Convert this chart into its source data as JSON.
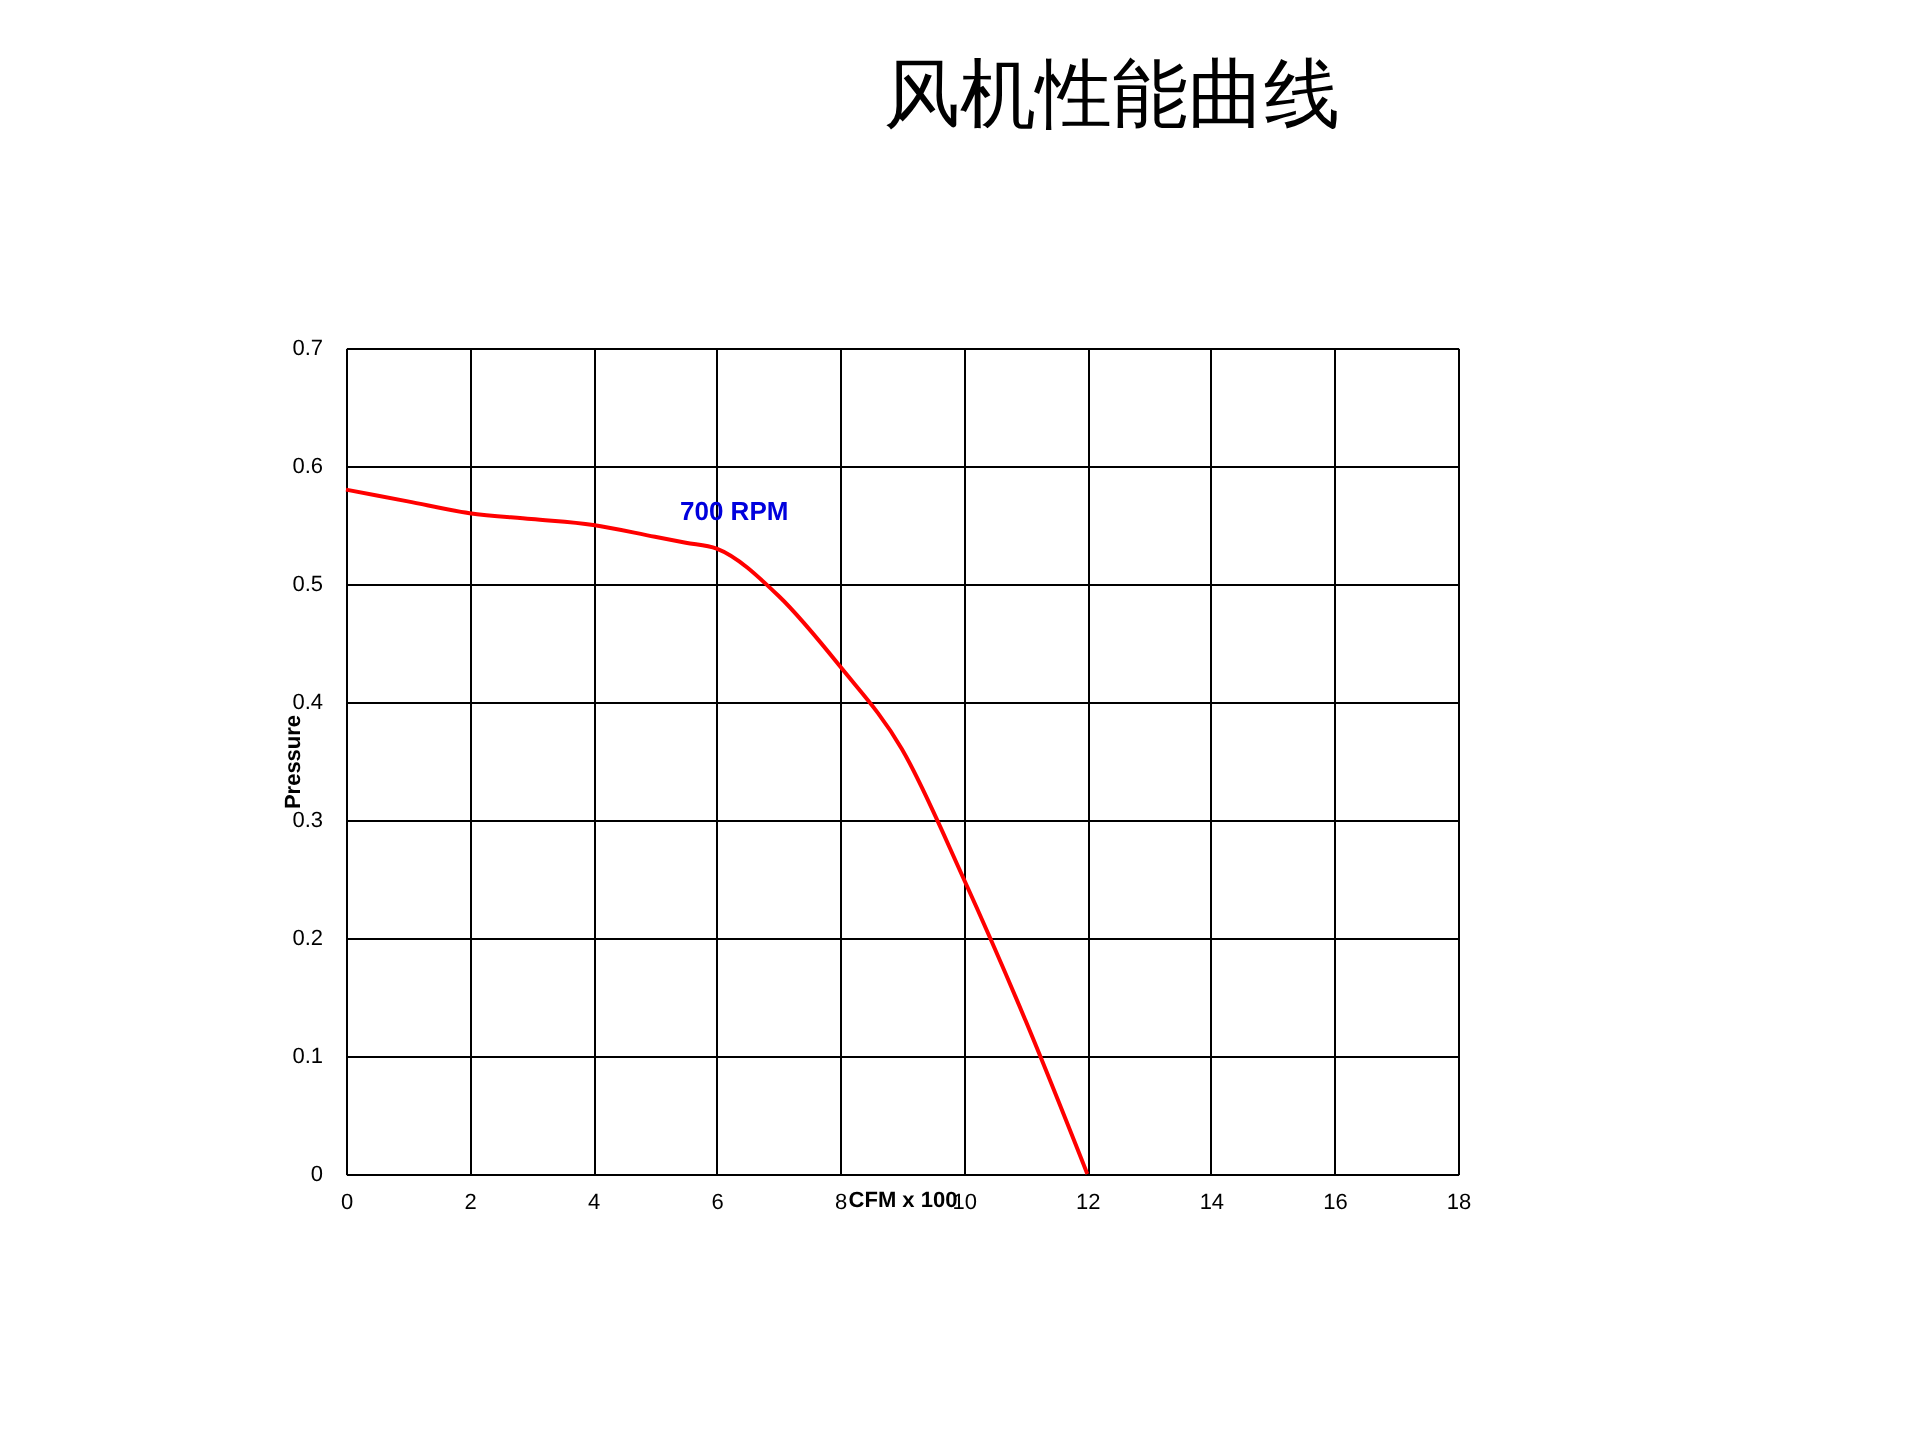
{
  "chart_data": {
    "type": "line",
    "title": "风机性能曲线",
    "xlabel": "CFM x 100",
    "ylabel": "Pressure",
    "x": [
      0,
      1,
      2,
      3,
      4,
      5,
      5.5,
      6,
      7,
      8,
      9,
      10,
      11,
      12
    ],
    "series": [
      {
        "color": "#ff0000",
        "values": [
          0.58,
          0.57,
          0.56,
          0.555,
          0.55,
          0.54,
          0.535,
          0.53,
          0.49,
          0.43,
          0.36,
          0.25,
          0.13,
          0
        ]
      }
    ],
    "xlim": [
      0,
      18
    ],
    "xticks": [
      0,
      2,
      4,
      6,
      8,
      10,
      12,
      14,
      16,
      18
    ],
    "ylim": [
      0,
      0.7
    ],
    "yticks": [
      0,
      0.1,
      0.2,
      0.3,
      0.4,
      0.5,
      0.6,
      0.7
    ],
    "grid": true,
    "marker": "none",
    "line_style": "solid",
    "annotations": [
      "700 RPM"
    ]
  }
}
